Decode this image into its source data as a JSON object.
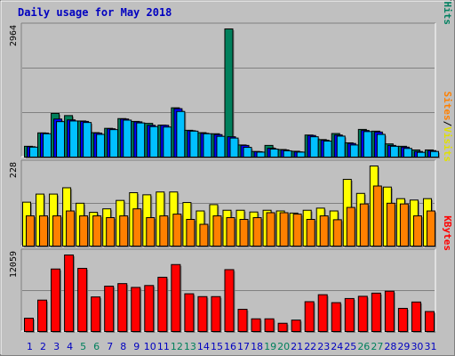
{
  "title": "Daily usage for May 2018",
  "panels": {
    "top": {
      "max_label": "2964",
      "legend": [
        {
          "text": "Pages",
          "color": "#00a0ff"
        },
        {
          "text": "/",
          "color": "#000000"
        },
        {
          "text": "Files",
          "color": "#0000c0"
        },
        {
          "text": "/",
          "color": "#000000"
        },
        {
          "text": "Hits",
          "color": "#008060"
        }
      ]
    },
    "middle": {
      "max_label": "228",
      "legend": [
        {
          "text": "Sites",
          "color": "#ff8000"
        },
        {
          "text": "/",
          "color": "#000000"
        },
        {
          "text": "Visits",
          "color": "#e0e000"
        }
      ]
    },
    "bottom": {
      "max_label": "12059",
      "legend": [
        {
          "text": "KBytes",
          "color": "#ff0000"
        }
      ]
    }
  },
  "colors": {
    "hits": "#00805c",
    "files": "#0000ff",
    "pages": "#00c0ff",
    "visits": "#ffff00",
    "sites": "#ff8000",
    "kbytes": "#ff0000",
    "weekday_label": "#0000c0",
    "weekend_label": "#00805c",
    "bg": "#c0c0c0"
  },
  "chart_data": [
    {
      "type": "bar",
      "categories": [
        "1",
        "2",
        "3",
        "4",
        "5",
        "6",
        "7",
        "8",
        "9",
        "10",
        "11",
        "12",
        "13",
        "14",
        "15",
        "16",
        "17",
        "18",
        "19",
        "20",
        "21",
        "22",
        "23",
        "24",
        "25",
        "26",
        "27",
        "28",
        "29",
        "30",
        "31"
      ],
      "weekend": [
        false,
        false,
        false,
        false,
        true,
        true,
        false,
        false,
        false,
        false,
        false,
        true,
        true,
        false,
        false,
        false,
        false,
        false,
        true,
        true,
        false,
        false,
        false,
        false,
        false,
        true,
        true,
        false,
        false,
        false,
        false
      ],
      "ylim": [
        0,
        2964
      ],
      "series": [
        {
          "name": "Hits",
          "values": [
            250,
            560,
            1010,
            960,
            835,
            565,
            665,
            890,
            825,
            780,
            740,
            1140,
            620,
            565,
            540,
            2964,
            280,
            130,
            270,
            175,
            135,
            510,
            405,
            545,
            330,
            640,
            600,
            305,
            250,
            165,
            165
          ]
        },
        {
          "name": "Files",
          "values": [
            240,
            555,
            880,
            860,
            825,
            555,
            655,
            880,
            815,
            735,
            735,
            1120,
            610,
            550,
            520,
            470,
            270,
            125,
            205,
            165,
            120,
            500,
            390,
            510,
            315,
            615,
            580,
            270,
            230,
            130,
            150
          ]
        },
        {
          "name": "Pages",
          "values": [
            230,
            540,
            820,
            835,
            800,
            525,
            635,
            855,
            790,
            705,
            695,
            1055,
            600,
            540,
            480,
            440,
            225,
            115,
            185,
            145,
            115,
            470,
            370,
            485,
            280,
            590,
            525,
            250,
            200,
            110,
            130
          ]
        }
      ]
    },
    {
      "type": "bar",
      "ylim": [
        0,
        228
      ],
      "series": [
        {
          "name": "Visits",
          "values": [
            125,
            148,
            148,
            166,
            122,
            96,
            106,
            130,
            152,
            146,
            154,
            154,
            124,
            100,
            118,
            102,
            102,
            97,
            102,
            100,
            94,
            102,
            108,
            100,
            190,
            150,
            228,
            168,
            135,
            131,
            135
          ]
        },
        {
          "name": "Sites",
          "values": [
            86,
            86,
            86,
            100,
            86,
            86,
            81,
            86,
            106,
            81,
            86,
            91,
            76,
            62,
            86,
            81,
            76,
            81,
            95,
            95,
            91,
            76,
            86,
            75,
            110,
            120,
            171,
            122,
            120,
            86,
            100
          ]
        }
      ]
    },
    {
      "type": "bar",
      "ylim": [
        0,
        12059
      ],
      "series": [
        {
          "name": "KBytes",
          "values": [
            2100,
            4950,
            9850,
            12059,
            9950,
            5450,
            7150,
            7550,
            6950,
            7250,
            8550,
            10550,
            5950,
            5500,
            5500,
            9750,
            3500,
            2000,
            2000,
            1300,
            1800,
            4700,
            5800,
            4550,
            5200,
            5550,
            6050,
            6350,
            3650,
            4650,
            3150
          ]
        }
      ]
    }
  ]
}
